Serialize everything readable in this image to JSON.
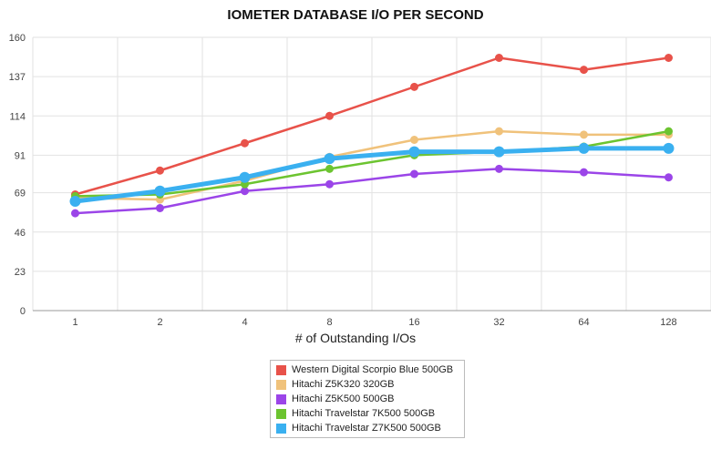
{
  "chart_data": {
    "type": "line",
    "title": "IOMETER DATABASE I/O PER SECOND",
    "xlabel": "# of Outstanding I/Os",
    "ylabel": "",
    "categories": [
      "1",
      "2",
      "4",
      "8",
      "16",
      "32",
      "64",
      "128"
    ],
    "yticks": [
      "0",
      "23",
      "46",
      "69",
      "91",
      "114",
      "137",
      "160"
    ],
    "ylim": [
      0,
      160
    ],
    "grid": true,
    "legend_position": "bottom",
    "series": [
      {
        "name": "Western Digital Scorpio Blue 500GB",
        "color": "#e8524a",
        "width": 2.5,
        "values": [
          68,
          82,
          98,
          114,
          131,
          148,
          141,
          148
        ]
      },
      {
        "name": "Hitachi Z5K320 320GB",
        "color": "#f0c27b",
        "width": 2.5,
        "values": [
          66,
          65,
          76,
          90,
          100,
          105,
          103,
          103
        ]
      },
      {
        "name": "Hitachi Z5K500 500GB",
        "color": "#9b45e8",
        "width": 2.5,
        "values": [
          57,
          60,
          70,
          74,
          80,
          83,
          81,
          78
        ]
      },
      {
        "name": "Hitachi Travelstar 7K500 500GB",
        "color": "#6cc430",
        "width": 2.5,
        "values": [
          67,
          68,
          74,
          83,
          91,
          93,
          96,
          105
        ]
      },
      {
        "name": "Hitachi Travelstar Z7K500 500GB",
        "color": "#3ab0f0",
        "width": 5,
        "values": [
          64,
          70,
          78,
          89,
          93,
          93,
          95,
          95
        ]
      }
    ]
  }
}
